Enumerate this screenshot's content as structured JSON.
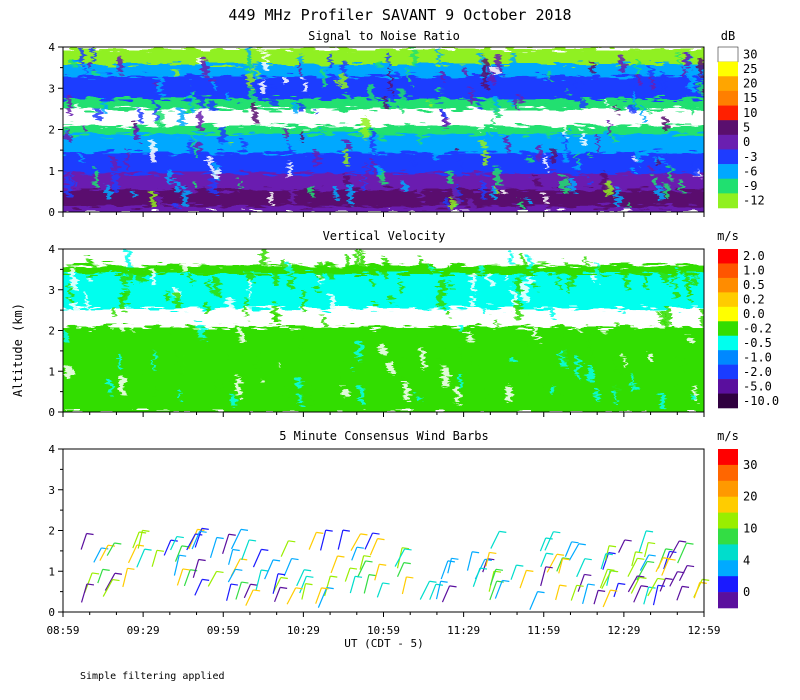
{
  "title": "449 MHz Profiler SAVANT  9 October 2018",
  "ylabel": "Altitude (km)",
  "xlabel": "UT  (CDT - 5)",
  "footnote": "Simple filtering applied",
  "x_ticks": [
    "08:59",
    "09:29",
    "09:59",
    "10:29",
    "10:59",
    "11:29",
    "11:59",
    "12:29",
    "12:59"
  ],
  "y_ticks": [
    "0",
    "1",
    "2",
    "3",
    "4"
  ],
  "chart_data": [
    {
      "type": "heatmap",
      "title": "Signal to Noise Ratio",
      "units": "dB",
      "ylim": [
        0,
        4
      ],
      "colorbar": {
        "labels": [
          "30",
          "25",
          "20",
          "15",
          "10",
          "5",
          "0",
          "-3",
          "-6",
          "-9",
          "-12"
        ],
        "colors": [
          "#ffffff",
          "#ffff00",
          "#ffa500",
          "#ff7f00",
          "#ff2000",
          "#5a0f6e",
          "#6a1fb0",
          "#1e3cff",
          "#00a8ff",
          "#20e070",
          "#90f020"
        ]
      },
      "layers": [
        {
          "from": 0.0,
          "to": 0.15,
          "color": "#6a1fb0"
        },
        {
          "from": 0.15,
          "to": 0.55,
          "color": "#5a0f6e"
        },
        {
          "from": 0.55,
          "to": 0.95,
          "color": "#6a1fb0"
        },
        {
          "from": 0.95,
          "to": 1.45,
          "color": "#1e3cff"
        },
        {
          "from": 1.45,
          "to": 1.9,
          "color": "#00a8ff"
        },
        {
          "from": 1.9,
          "to": 2.1,
          "color": "#20e070"
        },
        {
          "from": 2.1,
          "to": 2.5,
          "color": "#ffffff"
        },
        {
          "from": 2.5,
          "to": 2.75,
          "color": "#20e070"
        },
        {
          "from": 2.75,
          "to": 3.3,
          "color": "#1e3cff"
        },
        {
          "from": 3.3,
          "to": 3.6,
          "color": "#00a8ff"
        },
        {
          "from": 3.6,
          "to": 3.95,
          "color": "#90f020"
        }
      ]
    },
    {
      "type": "heatmap",
      "title": "Vertical Velocity",
      "units": "m/s",
      "ylim": [
        0,
        4
      ],
      "colorbar": {
        "labels": [
          "2.0",
          "1.0",
          "0.5",
          "0.2",
          "0.0",
          "-0.2",
          "-0.5",
          "-1.0",
          "-2.0",
          "-5.0",
          "-10.0"
        ],
        "colors": [
          "#ff0000",
          "#ff5500",
          "#ff8c00",
          "#ffcc00",
          "#ffff00",
          "#33dd00",
          "#00ffee",
          "#0088ff",
          "#1a3cff",
          "#5a0f9e",
          "#300040"
        ]
      },
      "layers": [
        {
          "from": 0.0,
          "to": 1.45,
          "color": "#33dd00"
        },
        {
          "from": 1.45,
          "to": 2.1,
          "color": "#33dd00"
        },
        {
          "from": 2.1,
          "to": 2.55,
          "color": "#ffffff"
        },
        {
          "from": 2.55,
          "to": 3.4,
          "color": "#00ffee"
        },
        {
          "from": 3.4,
          "to": 3.6,
          "color": "#33dd00"
        }
      ]
    },
    {
      "type": "scatter",
      "title": "5 Minute Consensus Wind Barbs",
      "units": "m/s",
      "ylim": [
        0,
        4
      ],
      "colorbar": {
        "labels": [
          "30",
          "20",
          "10",
          "4",
          "0"
        ],
        "colors": [
          "#ff0000",
          "#ff6600",
          "#ff9900",
          "#ffcc00",
          "#99ee00",
          "#33dd44",
          "#00ddcc",
          "#00aaff",
          "#1a1aff",
          "#5a0f9e"
        ]
      }
    }
  ]
}
